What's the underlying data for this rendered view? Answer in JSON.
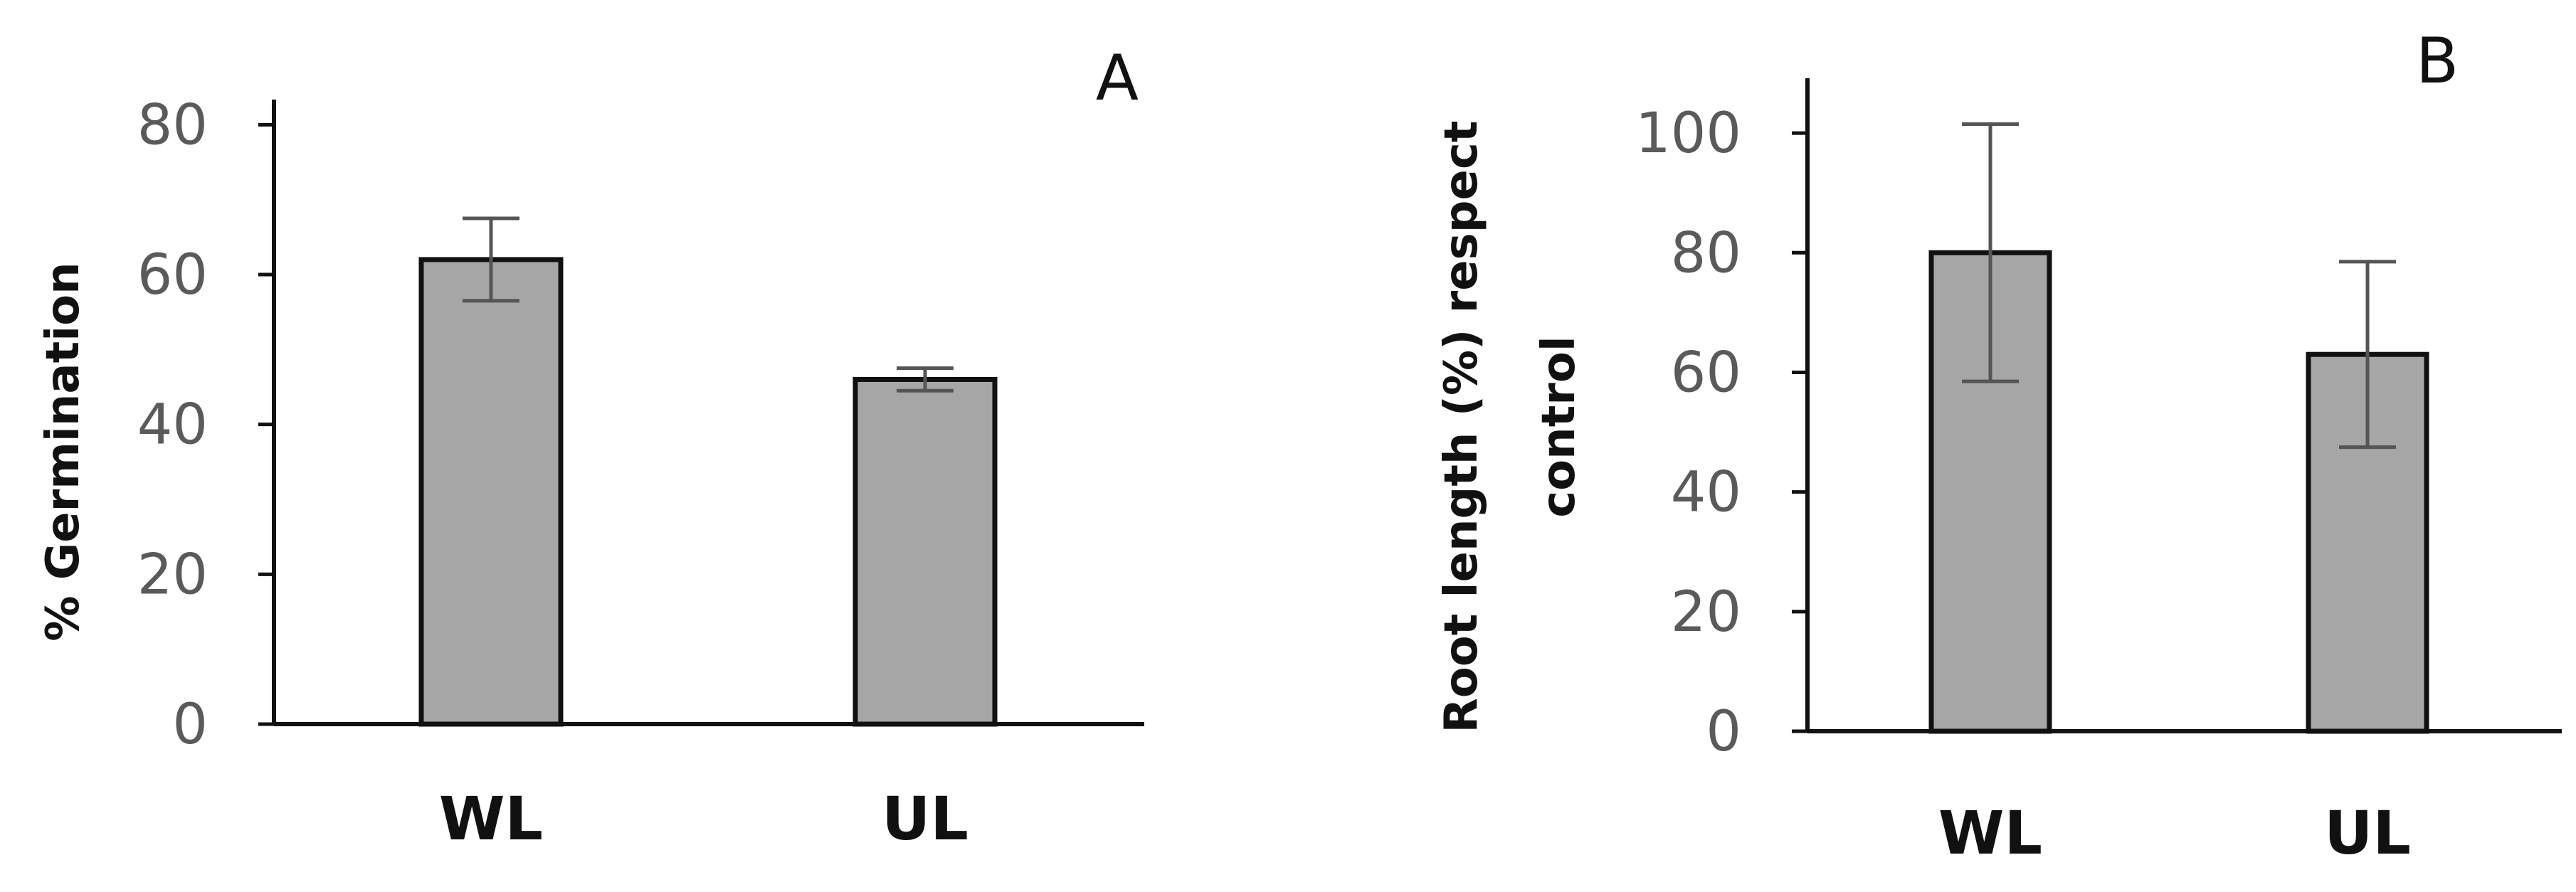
{
  "chart_data": [
    {
      "type": "bar",
      "panel_label": "A",
      "categories": [
        "WL",
        "UL"
      ],
      "values": [
        62,
        46
      ],
      "errors": [
        5.5,
        1.5
      ],
      "ylabel": "% Germination",
      "xlabel": "",
      "ylim": [
        0,
        90
      ],
      "yticks": [
        0,
        20,
        40,
        60,
        80
      ],
      "ytick_labels": [
        "0",
        "20",
        "40",
        "60",
        "80"
      ],
      "grid": false,
      "bar_color": "#a6a6a6"
    },
    {
      "type": "bar",
      "panel_label": "B",
      "categories": [
        "WL",
        "UL"
      ],
      "values": [
        80,
        63
      ],
      "errors": [
        21.5,
        15.5
      ],
      "ylabel_lines": [
        "Root length (%) respect",
        "control"
      ],
      "xlabel": "",
      "ylim": [
        0,
        110
      ],
      "yticks": [
        0,
        20,
        40,
        60,
        80,
        100
      ],
      "ytick_labels": [
        "0",
        "20",
        "40",
        "60",
        "80",
        "100"
      ],
      "grid": false,
      "bar_color": "#a6a6a6"
    }
  ]
}
